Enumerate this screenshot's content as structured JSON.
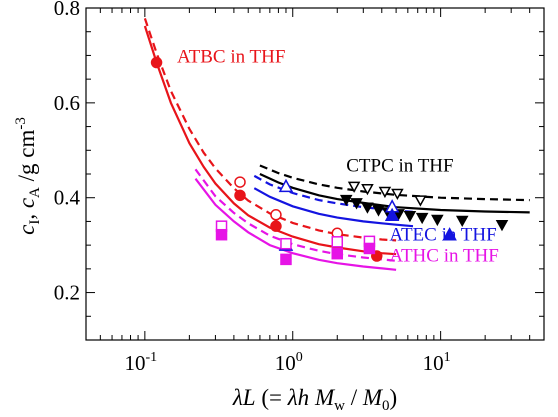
{
  "chart_data": {
    "type": "scatter",
    "x_scale": "log",
    "y_scale": "linear",
    "xlim": [
      0.04,
      50
    ],
    "ylim": [
      0.1,
      0.8
    ],
    "xticks": [
      {
        "value": 0.1,
        "base": "10",
        "exp": "-1"
      },
      {
        "value": 1,
        "base": "10",
        "exp": "0"
      },
      {
        "value": 10,
        "base": "10",
        "exp": "1"
      }
    ],
    "yticks": [
      0.2,
      0.4,
      0.6,
      0.8
    ],
    "ytick_labels": [
      "0.2",
      "0.4",
      "0.6",
      "0.8"
    ],
    "xlabel_parts": [
      "λL",
      " (= ",
      "λh",
      " M",
      "w",
      " / ",
      "M",
      "0",
      ")"
    ],
    "ylabel_parts": [
      "c",
      "I",
      ", ",
      "c",
      "A",
      " /g cm",
      "-3"
    ],
    "series": [
      {
        "name": "ATBC in THF",
        "color": "#e8141a",
        "label_pos": {
          "x": 0.165,
          "y": 0.685
        },
        "filled": {
          "marker": "circle",
          "x": [
            0.12,
            0.44,
            0.77,
            2.0,
            3.7
          ],
          "y": [
            0.685,
            0.405,
            0.34,
            0.3,
            0.277
          ]
        },
        "open": {
          "marker": "circle",
          "x": [
            0.44,
            0.77,
            2.0
          ],
          "y": [
            0.433,
            0.364,
            0.325
          ]
        },
        "solid_curve": {
          "x": [
            0.1,
            0.12,
            0.15,
            0.2,
            0.25,
            0.3,
            0.4,
            0.5,
            0.7,
            1.0,
            1.5,
            2.0,
            3.0,
            4.0,
            5.0
          ],
          "y": [
            0.762,
            0.685,
            0.6,
            0.515,
            0.465,
            0.43,
            0.388,
            0.363,
            0.337,
            0.318,
            0.302,
            0.295,
            0.287,
            0.283,
            0.281
          ]
        },
        "dashed_curve": {
          "x": [
            0.1,
            0.12,
            0.15,
            0.2,
            0.25,
            0.3,
            0.4,
            0.5,
            0.7,
            1.0,
            1.5,
            2.0,
            3.0,
            4.0,
            5.0
          ],
          "y": [
            0.778,
            0.705,
            0.625,
            0.545,
            0.495,
            0.462,
            0.42,
            0.394,
            0.367,
            0.347,
            0.331,
            0.323,
            0.316,
            0.312,
            0.31
          ]
        }
      },
      {
        "name": "CTPC in THF",
        "color": "#000000",
        "label_pos": {
          "x": 2.3,
          "y": 0.455
        },
        "filled": {
          "marker": "triangle-down",
          "x": [
            2.3,
            2.7,
            3.2,
            3.8,
            4.4,
            5.2,
            6.2,
            7.5,
            9.5,
            14.0,
            26.0
          ],
          "y": [
            0.396,
            0.389,
            0.38,
            0.374,
            0.37,
            0.366,
            0.362,
            0.358,
            0.354,
            0.352,
            0.343
          ]
        },
        "open": {
          "marker": "triangle-down",
          "x": [
            2.6,
            3.2,
            4.2,
            5.1,
            7.3
          ],
          "y": [
            0.424,
            0.419,
            0.413,
            0.409,
            0.395
          ]
        },
        "solid_curve": {
          "x": [
            0.6,
            0.8,
            1.0,
            1.5,
            2.0,
            3.0,
            5.0,
            10.0,
            20.0,
            40.0
          ],
          "y": [
            0.45,
            0.432,
            0.421,
            0.405,
            0.397,
            0.389,
            0.38,
            0.374,
            0.371,
            0.369
          ]
        },
        "dashed_curve": {
          "x": [
            0.6,
            0.8,
            1.0,
            1.5,
            2.0,
            3.0,
            5.0,
            10.0,
            20.0,
            40.0
          ],
          "y": [
            0.468,
            0.452,
            0.442,
            0.428,
            0.421,
            0.413,
            0.406,
            0.4,
            0.397,
            0.395
          ]
        }
      },
      {
        "name": "ATEC in THF",
        "color": "#1414e0",
        "label_pos": {
          "x": 4.5,
          "y": 0.31
        },
        "filled": {
          "marker": "triangle-up",
          "x": [
            0.9,
            4.7,
            11.5
          ],
          "y": [
            0.3,
            0.363,
            0.322
          ]
        },
        "open": {
          "marker": "triangle-up",
          "x": [
            0.9,
            4.7
          ],
          "y": [
            0.424,
            0.381
          ]
        },
        "solid_curve": {
          "x": [
            0.55,
            0.7,
            1.0,
            1.5,
            2.0,
            3.0,
            4.0,
            5.0,
            6.5
          ],
          "y": [
            0.42,
            0.402,
            0.382,
            0.366,
            0.358,
            0.35,
            0.346,
            0.343,
            0.34
          ]
        },
        "dashed_curve": {
          "x": [
            0.55,
            0.7,
            1.0,
            1.5,
            2.0,
            3.0,
            4.0,
            5.0,
            6.5
          ],
          "y": [
            0.446,
            0.428,
            0.41,
            0.395,
            0.388,
            0.38,
            0.376,
            0.373,
            0.37
          ]
        }
      },
      {
        "name": "ATHC in THF",
        "color": "#e614e6",
        "label_pos": {
          "x": 4.5,
          "y": 0.265
        },
        "filled": {
          "marker": "square",
          "x": [
            0.33,
            0.9,
            2.0,
            3.3
          ],
          "y": [
            0.322,
            0.27,
            0.282,
            0.293
          ]
        },
        "open": {
          "marker": "square",
          "x": [
            0.33,
            0.9,
            2.0,
            3.3
          ],
          "y": [
            0.34,
            0.303,
            0.307,
            0.308
          ]
        },
        "solid_curve": {
          "x": [
            0.22,
            0.3,
            0.4,
            0.5,
            0.7,
            1.0,
            1.5,
            2.0,
            3.0,
            5.0
          ],
          "y": [
            0.44,
            0.385,
            0.35,
            0.327,
            0.3,
            0.283,
            0.269,
            0.262,
            0.255,
            0.248
          ]
        },
        "dashed_curve": {
          "x": [
            0.22,
            0.3,
            0.4,
            0.5,
            0.7,
            1.0,
            1.5,
            2.0,
            3.0,
            5.0
          ],
          "y": [
            0.46,
            0.403,
            0.368,
            0.346,
            0.32,
            0.302,
            0.288,
            0.281,
            0.274,
            0.267
          ]
        }
      }
    ]
  }
}
